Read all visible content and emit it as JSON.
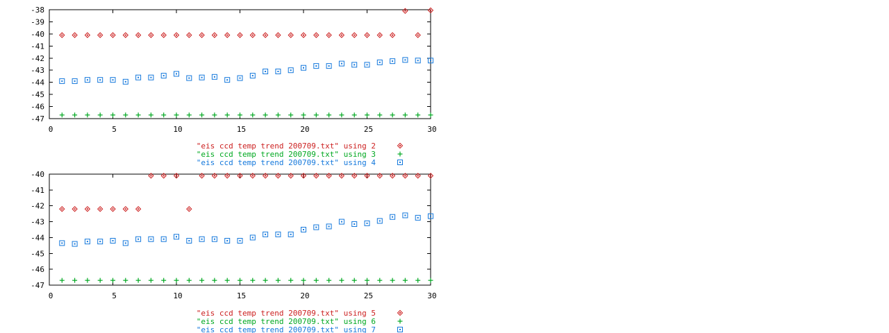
{
  "page": {
    "background": "#ffffff",
    "axis_color": "#000000"
  },
  "chart_data": [
    {
      "type": "scatter",
      "title": "",
      "xlabel": "",
      "ylabel": "",
      "xlim": [
        0,
        30
      ],
      "xticks": [
        0,
        5,
        10,
        15,
        20,
        25,
        30
      ],
      "ylim": [
        -47,
        -38
      ],
      "ytick_step": 1,
      "grid": false,
      "legend_position": "below-right",
      "x": [
        1,
        2,
        3,
        4,
        5,
        6,
        7,
        8,
        9,
        10,
        11,
        12,
        13,
        14,
        15,
        16,
        17,
        18,
        19,
        20,
        21,
        22,
        23,
        24,
        25,
        26,
        27,
        28,
        29,
        30
      ],
      "series": [
        {
          "name": "\"eis ccd temp trend 200709.txt\" using 2",
          "marker": "diamond-dot",
          "color": "#cc2020",
          "y": [
            -40.1,
            -40.1,
            -40.1,
            -40.1,
            -40.1,
            -40.1,
            -40.1,
            -40.1,
            -40.1,
            -40.1,
            -40.1,
            -40.1,
            -40.1,
            -40.1,
            -40.1,
            -40.1,
            -40.1,
            -40.1,
            -40.1,
            -40.1,
            -40.1,
            -40.1,
            -40.1,
            -40.1,
            -40.1,
            -40.1,
            -40.1,
            -38.1,
            -40.1,
            -38.05
          ]
        },
        {
          "name": "\"eis ccd temp trend 200709.txt\" using 3",
          "marker": "plus",
          "color": "#00a820",
          "y": [
            -46.7,
            -46.7,
            -46.7,
            -46.7,
            -46.7,
            -46.7,
            -46.7,
            -46.7,
            -46.7,
            -46.7,
            -46.7,
            -46.7,
            -46.7,
            -46.7,
            -46.7,
            -46.7,
            -46.7,
            -46.7,
            -46.7,
            -46.7,
            -46.7,
            -46.7,
            -46.7,
            -46.7,
            -46.7,
            -46.7,
            -46.7,
            -46.7,
            -46.7,
            -46.7
          ]
        },
        {
          "name": "\"eis ccd temp trend 200709.txt\" using 4",
          "marker": "square-dot",
          "color": "#1478dc",
          "y": [
            -43.9,
            -43.9,
            -43.8,
            -43.8,
            -43.8,
            -43.95,
            -43.6,
            -43.6,
            -43.45,
            -43.3,
            -43.65,
            -43.6,
            -43.55,
            -43.8,
            -43.65,
            -43.45,
            -43.1,
            -43.1,
            -43.0,
            -42.8,
            -42.65,
            -42.65,
            -42.45,
            -42.55,
            -42.55,
            -42.35,
            -42.25,
            -42.15,
            -42.2,
            -42.2
          ]
        }
      ]
    },
    {
      "type": "scatter",
      "title": "",
      "xlabel": "",
      "ylabel": "",
      "xlim": [
        0,
        30
      ],
      "xticks": [
        0,
        5,
        10,
        15,
        20,
        25,
        30
      ],
      "ylim": [
        -47,
        -40
      ],
      "ytick_step": 1,
      "grid": false,
      "legend_position": "below-right",
      "x": [
        1,
        2,
        3,
        4,
        5,
        6,
        7,
        8,
        9,
        10,
        11,
        12,
        13,
        14,
        15,
        16,
        17,
        18,
        19,
        20,
        21,
        22,
        23,
        24,
        25,
        26,
        27,
        28,
        29,
        30
      ],
      "series": [
        {
          "name": "\"eis ccd temp trend 200709.txt\" using 5",
          "marker": "diamond-dot",
          "color": "#cc2020",
          "y": [
            -42.2,
            -42.2,
            -42.2,
            -42.2,
            -42.2,
            -42.2,
            -42.2,
            -40.1,
            -40.1,
            -40.1,
            -42.2,
            -40.1,
            -40.1,
            -40.1,
            -40.1,
            -40.1,
            -40.1,
            -40.1,
            -40.1,
            -40.1,
            -40.1,
            -40.1,
            -40.1,
            -40.1,
            -40.1,
            -40.1,
            -40.1,
            -40.1,
            -40.1,
            -40.1
          ]
        },
        {
          "name": "\"eis ccd temp trend 200709.txt\" using 6",
          "marker": "plus",
          "color": "#00a820",
          "y": [
            -46.7,
            -46.7,
            -46.7,
            -46.7,
            -46.7,
            -46.7,
            -46.7,
            -46.7,
            -46.7,
            -46.7,
            -46.7,
            -46.7,
            -46.7,
            -46.7,
            -46.7,
            -46.7,
            -46.7,
            -46.7,
            -46.7,
            -46.7,
            -46.7,
            -46.7,
            -46.7,
            -46.7,
            -46.7,
            -46.7,
            -46.7,
            -46.7,
            -46.7,
            -46.7
          ]
        },
        {
          "name": "\"eis ccd temp trend 200709.txt\" using 7",
          "marker": "square-dot",
          "color": "#1478dc",
          "y": [
            -44.35,
            -44.4,
            -44.25,
            -44.25,
            -44.2,
            -44.35,
            -44.1,
            -44.1,
            -44.1,
            -43.95,
            -44.2,
            -44.1,
            -44.1,
            -44.2,
            -44.2,
            -44.0,
            -43.8,
            -43.8,
            -43.8,
            -43.5,
            -43.35,
            -43.3,
            -43.0,
            -43.15,
            -43.1,
            -42.95,
            -42.7,
            -42.6,
            -42.75,
            -42.65
          ]
        }
      ]
    }
  ]
}
